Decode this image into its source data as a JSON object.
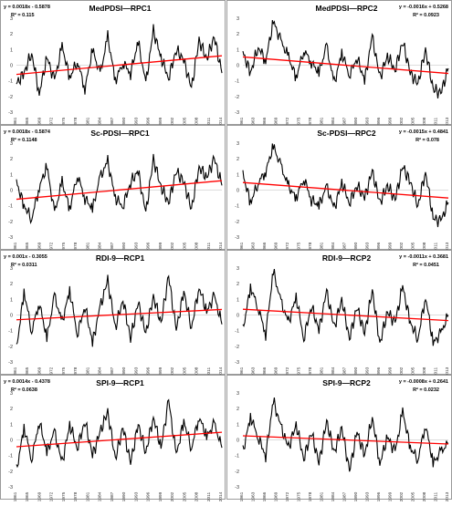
{
  "figure": {
    "panels": [
      {
        "title": "MedPDSI—RPC1",
        "equation": "y = 0.0018x - 0.5878",
        "r2": "R² = 0.115"
      },
      {
        "title": "MedPDSI—RPC2",
        "equation": "y = -0.0016x + 0.5268",
        "r2": "R² = 0.0923"
      },
      {
        "title": "Sc-PDSI—RPC1",
        "equation": "y = 0.0018x - 0.5874",
        "r2": "R² = 0.1148"
      },
      {
        "title": "Sc-PDSI—RPC2",
        "equation": "y = -0.0015x + 0.4841",
        "r2": "R² = 0.078"
      },
      {
        "title": "RDI-9—RCP1",
        "equation": "y = 0.001x - 0.3055",
        "r2": "R² = 0.0311"
      },
      {
        "title": "RDI-9—RCP2",
        "equation": "y = -0.0011x + 0.3681",
        "r2": "R² = 0.0451"
      },
      {
        "title": "SPI-9—RCP1",
        "equation": "y = 0.0014x - 0.4378",
        "r2": "R² = 0.0638"
      },
      {
        "title": "SPI-9—RCP2",
        "equation": "y = -0.0008x + 0.2641",
        "r2": "R² = 0.0232"
      }
    ]
  },
  "chart_data": [
    {
      "type": "line",
      "title": "MedPDSI—RPC1",
      "ylim": [
        -3,
        3
      ],
      "yticks": [
        -3,
        -2,
        -1,
        0,
        1,
        2,
        3
      ],
      "trend": {
        "slope": 0.0018,
        "intercept": -0.5878,
        "r2": 0.115
      },
      "series_color": "#000000",
      "trend_color": "#ff0000",
      "x": [
        1961,
        1963,
        1965,
        1967,
        1969,
        1971,
        1973,
        1975,
        1977,
        1979,
        1981,
        1983,
        1985,
        1987,
        1989,
        1991,
        1993,
        1995,
        1997,
        1999,
        2001,
        2003,
        2005,
        2007,
        2009,
        2011,
        2013,
        2015
      ],
      "y": [
        -1.2,
        -0.5,
        0.8,
        -1.8,
        0.5,
        -1.0,
        1.2,
        -0.8,
        0.3,
        -1.5,
        1.0,
        -0.6,
        1.8,
        -1.0,
        0.2,
        -0.5,
        1.5,
        -1.2,
        2.2,
        0.5,
        -0.8,
        1.0,
        0.3,
        -1.5,
        1.6,
        0.4,
        1.8,
        -0.5
      ]
    },
    {
      "type": "line",
      "title": "MedPDSI—RPC2",
      "ylim": [
        -3,
        3
      ],
      "yticks": [
        -3,
        -2,
        -1,
        0,
        1,
        2,
        3
      ],
      "trend": {
        "slope": -0.0016,
        "intercept": 0.5268,
        "r2": 0.0923
      },
      "series_color": "#000000",
      "trend_color": "#ff0000",
      "x": [
        1961,
        1963,
        1965,
        1967,
        1969,
        1971,
        1973,
        1975,
        1977,
        1979,
        1981,
        1983,
        1985,
        1987,
        1989,
        1991,
        1993,
        1995,
        1997,
        1999,
        2001,
        2003,
        2005,
        2007,
        2009,
        2011,
        2013,
        2015
      ],
      "y": [
        0.8,
        -0.5,
        1.2,
        0.3,
        2.8,
        1.5,
        0.5,
        -0.8,
        1.0,
        0.2,
        -0.5,
        1.2,
        -1.2,
        0.8,
        -0.6,
        0.5,
        -1.0,
        1.8,
        -0.8,
        0.6,
        -0.3,
        1.5,
        -0.5,
        -1.2,
        1.0,
        -1.5,
        -1.8,
        -0.2
      ]
    },
    {
      "type": "line",
      "title": "Sc-PDSI—RPC1",
      "ylim": [
        -3,
        3
      ],
      "yticks": [
        -3,
        -2,
        -1,
        0,
        1,
        2,
        3
      ],
      "trend": {
        "slope": 0.0018,
        "intercept": -0.5874,
        "r2": 0.1148
      },
      "series_color": "#000000",
      "trend_color": "#ff0000",
      "x": [
        1961,
        1963,
        1965,
        1967,
        1969,
        1971,
        1973,
        1975,
        1977,
        1979,
        1981,
        1983,
        1985,
        1987,
        1989,
        1991,
        1993,
        1995,
        1997,
        1999,
        2001,
        2003,
        2005,
        2007,
        2009,
        2011,
        2013,
        2015
      ],
      "y": [
        0.5,
        -1.0,
        -1.8,
        0.2,
        1.5,
        -1.5,
        0.5,
        -1.2,
        1.0,
        -0.5,
        -1.2,
        0.8,
        1.8,
        -0.5,
        -1.0,
        0.5,
        1.2,
        -1.5,
        2.0,
        0.2,
        -0.8,
        1.2,
        0.5,
        -1.2,
        1.5,
        0.8,
        2.0,
        0.3
      ]
    },
    {
      "type": "line",
      "title": "Sc-PDSI—RPC2",
      "ylim": [
        -3,
        3
      ],
      "yticks": [
        -3,
        -2,
        -1,
        0,
        1,
        2,
        3
      ],
      "trend": {
        "slope": -0.0015,
        "intercept": 0.4841,
        "r2": 0.078
      },
      "series_color": "#000000",
      "trend_color": "#ff0000",
      "x": [
        1961,
        1963,
        1965,
        1967,
        1969,
        1971,
        1973,
        1975,
        1977,
        1979,
        1981,
        1983,
        1985,
        1987,
        1989,
        1991,
        1993,
        1995,
        1997,
        1999,
        2001,
        2003,
        2005,
        2007,
        2009,
        2011,
        2013,
        2015
      ],
      "y": [
        1.0,
        -0.8,
        0.5,
        1.2,
        2.8,
        1.5,
        0.2,
        -0.5,
        0.8,
        -0.6,
        -1.0,
        0.2,
        -1.2,
        0.5,
        -0.8,
        0.3,
        -0.5,
        1.2,
        -0.8,
        0.3,
        -0.6,
        1.5,
        0.5,
        -1.0,
        1.2,
        -1.8,
        -2.0,
        -0.8
      ]
    },
    {
      "type": "line",
      "title": "RDI-9—RCP1",
      "ylim": [
        -3,
        3
      ],
      "yticks": [
        -3,
        -2,
        -1,
        0,
        1,
        2,
        3
      ],
      "trend": {
        "slope": 0.001,
        "intercept": -0.3055,
        "r2": 0.0311
      },
      "series_color": "#000000",
      "trend_color": "#ff0000",
      "x": [
        1961,
        1963,
        1965,
        1967,
        1969,
        1971,
        1973,
        1975,
        1977,
        1979,
        1981,
        1983,
        1985,
        1987,
        1989,
        1991,
        1993,
        1995,
        1997,
        1999,
        2001,
        2003,
        2005,
        2007,
        2009,
        2011,
        2013,
        2015
      ],
      "y": [
        -2.2,
        1.5,
        -1.0,
        0.8,
        -1.5,
        1.2,
        -0.5,
        1.6,
        -1.2,
        0.6,
        -1.8,
        0.5,
        2.2,
        -0.8,
        1.0,
        -1.5,
        0.8,
        -1.2,
        1.2,
        -0.5,
        2.5,
        -1.0,
        1.5,
        -0.8,
        1.8,
        0.2,
        1.2,
        -0.6
      ]
    },
    {
      "type": "line",
      "title": "RDI-9—RCP2",
      "ylim": [
        -3,
        3
      ],
      "yticks": [
        -3,
        -2,
        -1,
        0,
        1,
        2,
        3
      ],
      "trend": {
        "slope": -0.0011,
        "intercept": 0.3681,
        "r2": 0.0451
      },
      "series_color": "#000000",
      "trend_color": "#ff0000",
      "x": [
        1961,
        1963,
        1965,
        1967,
        1969,
        1971,
        1973,
        1975,
        1977,
        1979,
        1981,
        1983,
        1985,
        1987,
        1989,
        1991,
        1993,
        1995,
        1997,
        1999,
        2001,
        2003,
        2005,
        2007,
        2009,
        2011,
        2013,
        2015
      ],
      "y": [
        -1.0,
        1.8,
        0.5,
        -1.2,
        2.8,
        0.8,
        -0.5,
        1.2,
        -1.5,
        0.6,
        -1.0,
        1.5,
        -0.8,
        1.0,
        -1.5,
        0.5,
        -1.2,
        1.6,
        -1.8,
        0.2,
        -0.5,
        1.8,
        -0.5,
        -1.5,
        1.2,
        -1.8,
        -1.2,
        0.0
      ]
    },
    {
      "type": "line",
      "title": "SPI-9—RCP1",
      "ylim": [
        -3,
        3
      ],
      "yticks": [
        -3,
        -2,
        -1,
        0,
        1,
        2,
        3
      ],
      "trend": {
        "slope": 0.0014,
        "intercept": -0.4378,
        "r2": 0.0638
      },
      "series_color": "#000000",
      "trend_color": "#ff0000",
      "x": [
        1961,
        1963,
        1965,
        1967,
        1969,
        1971,
        1973,
        1975,
        1977,
        1979,
        1981,
        1983,
        1985,
        1987,
        1989,
        1991,
        1993,
        1995,
        1997,
        1999,
        2001,
        2003,
        2005,
        2007,
        2009,
        2011,
        2013,
        2015
      ],
      "y": [
        -2.0,
        0.8,
        -1.2,
        1.2,
        -0.8,
        0.5,
        -1.5,
        1.0,
        -0.5,
        1.2,
        -1.0,
        0.5,
        1.8,
        -1.2,
        0.8,
        -1.5,
        1.0,
        -0.8,
        1.5,
        -0.5,
        2.5,
        -1.0,
        1.2,
        -0.5,
        1.5,
        0.2,
        1.0,
        -0.5
      ]
    },
    {
      "type": "line",
      "title": "SPI-9—RCP2",
      "ylim": [
        -3,
        3
      ],
      "yticks": [
        -3,
        -2,
        -1,
        0,
        1,
        2,
        3
      ],
      "trend": {
        "slope": -0.0008,
        "intercept": 0.2641,
        "r2": 0.0232
      },
      "series_color": "#000000",
      "trend_color": "#ff0000",
      "x": [
        1961,
        1963,
        1965,
        1967,
        1969,
        1971,
        1973,
        1975,
        1977,
        1979,
        1981,
        1983,
        1985,
        1987,
        1989,
        1991,
        1993,
        1995,
        1997,
        1999,
        2001,
        2003,
        2005,
        2007,
        2009,
        2011,
        2013,
        2015
      ],
      "y": [
        -0.8,
        1.5,
        0.2,
        -1.0,
        2.5,
        0.8,
        -0.5,
        1.0,
        -1.2,
        0.5,
        -1.5,
        1.2,
        -0.8,
        0.8,
        -2.0,
        0.5,
        -1.0,
        1.5,
        -1.5,
        0.2,
        -0.8,
        1.8,
        -0.5,
        -1.2,
        1.0,
        -1.5,
        -0.8,
        -0.2
      ]
    }
  ],
  "x_tick_labels": {
    "left": [
      "1961",
      "1965",
      "1969",
      "1972",
      "1975",
      "1978",
      "1981",
      "1984",
      "1987",
      "1990",
      "1993",
      "1996",
      "1999",
      "2002",
      "2005",
      "2008",
      "2011",
      "2014"
    ],
    "right": [
      "1961",
      "1963",
      "1966",
      "1969",
      "1972",
      "1975",
      "1978",
      "1981",
      "1984",
      "1987",
      "1990",
      "1993",
      "1996",
      "1999",
      "2002",
      "2005",
      "2008",
      "2011",
      "2013"
    ]
  }
}
